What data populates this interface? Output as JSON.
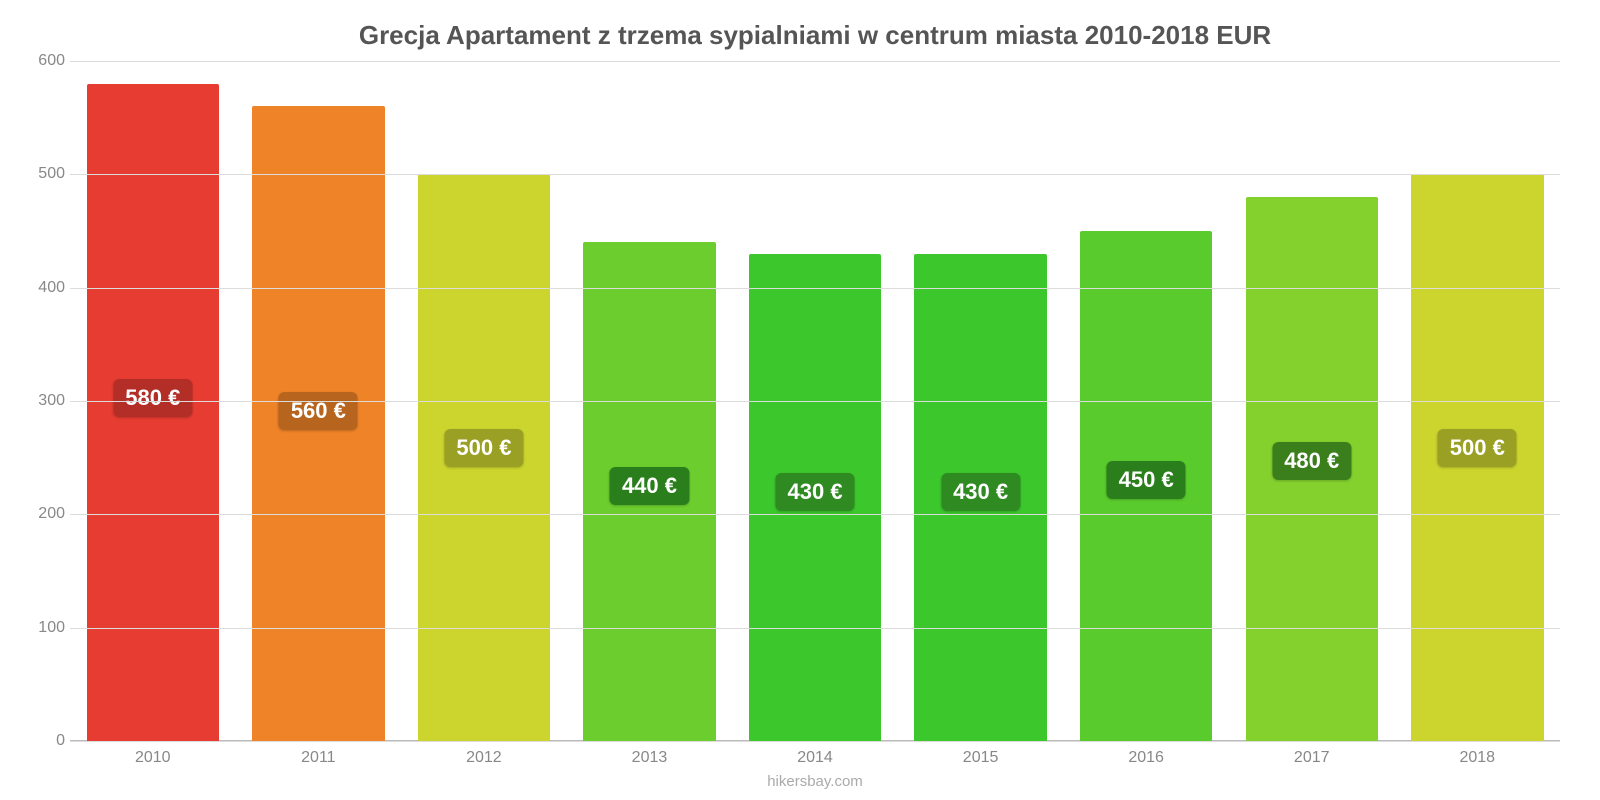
{
  "chart": {
    "type": "bar",
    "title": "Grecja Apartament z trzema sypialniami w centrum miasta 2010-2018 EUR",
    "title_fontsize": 26,
    "title_color": "#555555",
    "footer": "hikersbay.com",
    "footer_fontsize": 15,
    "footer_color": "#aaaaaa",
    "background_color": "#ffffff",
    "grid_color": "#dcdcdc",
    "axis_label_color": "#888888",
    "axis_label_fontsize": 16,
    "ylim": [
      0,
      600
    ],
    "ytick_step": 100,
    "yticks": [
      0,
      100,
      200,
      300,
      400,
      500,
      600
    ],
    "bar_width": 0.8,
    "bar_label_fontsize": 22,
    "bar_label_color": "#ffffff",
    "x_label_fontsize": 16,
    "categories": [
      "2010",
      "2011",
      "2012",
      "2013",
      "2014",
      "2015",
      "2016",
      "2017",
      "2018"
    ],
    "values": [
      580,
      560,
      500,
      440,
      430,
      430,
      450,
      480,
      500
    ],
    "display_labels": [
      "580 €",
      "560 €",
      "500 €",
      "440 €",
      "430 €",
      "430 €",
      "450 €",
      "480 €",
      "500 €"
    ],
    "bar_colors": [
      "#e73c32",
      "#ee8328",
      "#ccd42e",
      "#6cce2e",
      "#3cc82c",
      "#3cc82c",
      "#5acb2d",
      "#84d02d",
      "#ccd42e"
    ],
    "bar_label_bg_colors": [
      "#b32e27",
      "#b7641f",
      "#9aa024",
      "#2a7f1c",
      "#2e8a21",
      "#2e8a21",
      "#2a7f1c",
      "#3a7f1c",
      "#9aa024"
    ]
  }
}
